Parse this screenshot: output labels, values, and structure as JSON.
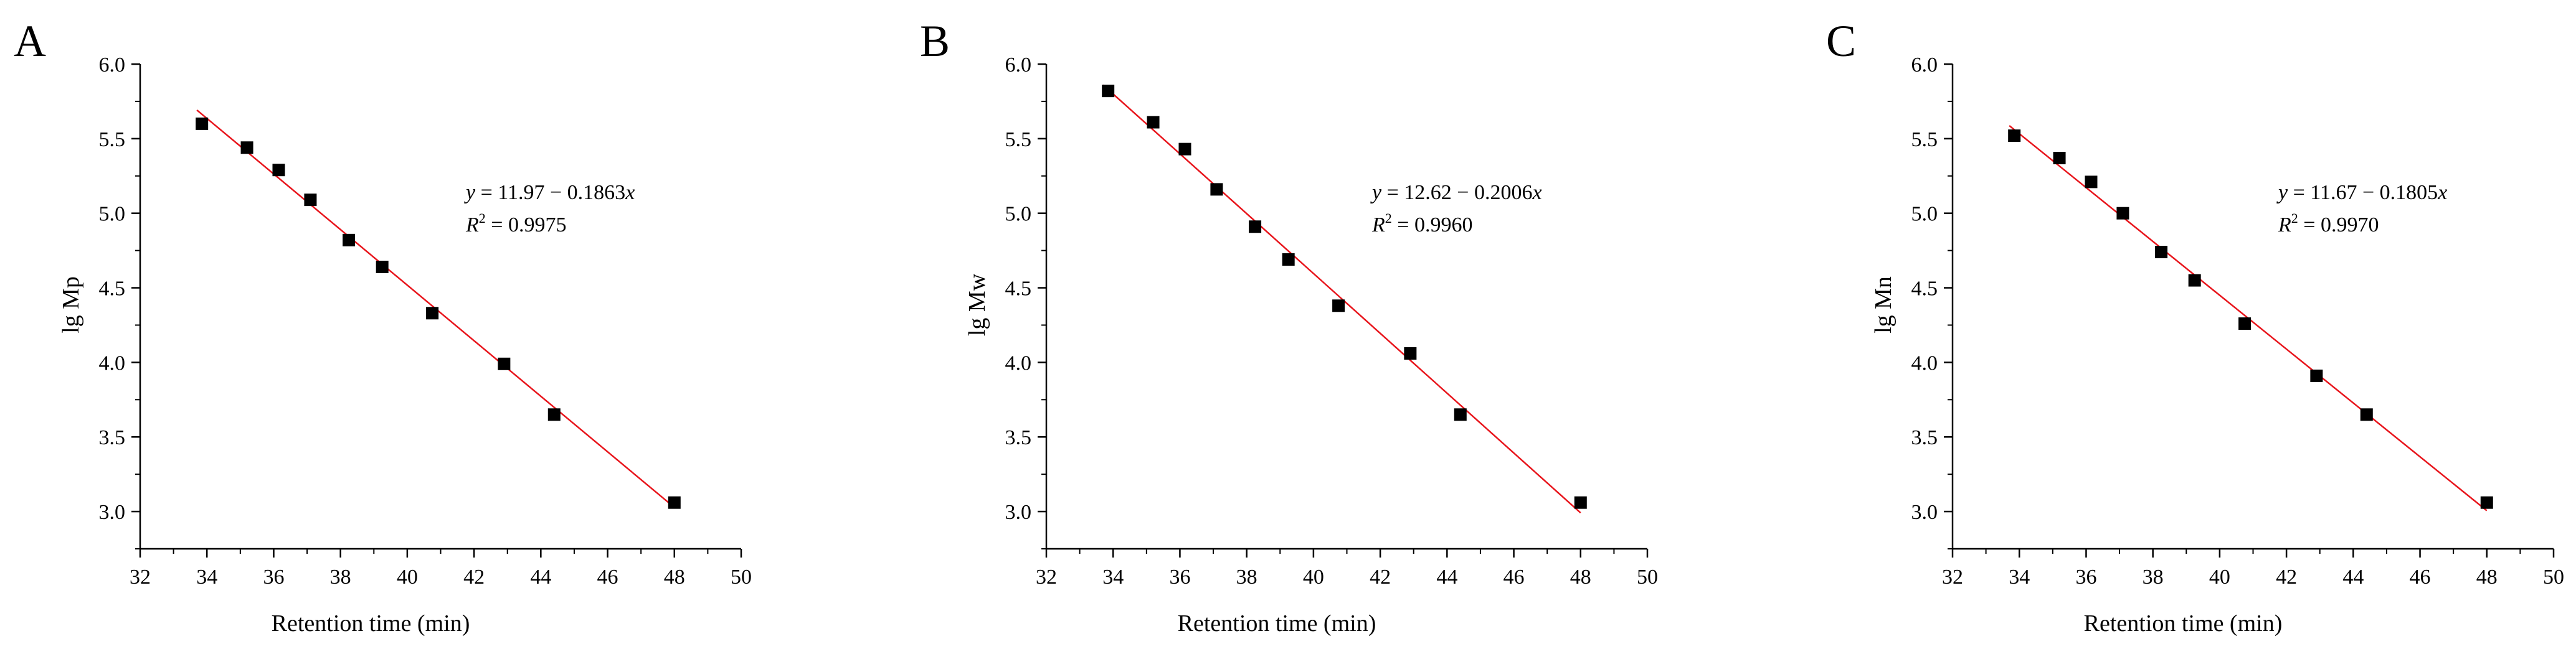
{
  "colors": {
    "points": "#000000",
    "fit_line": "#e8141b",
    "axes": "#000000"
  },
  "chart_data": [
    {
      "type": "scatter",
      "panel": "A",
      "xlabel": "Retention time (min)",
      "ylabel": "lg Mp",
      "xlim": [
        32,
        50
      ],
      "ylim": [
        2.75,
        6.0
      ],
      "xticks": [
        32,
        34,
        36,
        38,
        40,
        42,
        44,
        46,
        48,
        50
      ],
      "xtick_labels": [
        "32",
        "34",
        "36",
        "38",
        "40",
        "42",
        "44",
        "46",
        "48",
        "50"
      ],
      "yticks": [
        3.0,
        3.5,
        4.0,
        4.5,
        5.0,
        5.5,
        6.0
      ],
      "ytick_labels": [
        "3.0",
        "3.5",
        "4.0",
        "4.5",
        "5.0",
        "5.5",
        "6.0"
      ],
      "x": [
        33.85,
        35.2,
        36.15,
        37.1,
        38.25,
        39.25,
        40.75,
        42.9,
        44.4,
        48.0
      ],
      "y": [
        5.6,
        5.44,
        5.29,
        5.09,
        4.82,
        4.64,
        4.33,
        3.99,
        3.65,
        3.06
      ],
      "fit": {
        "intercept": 11.97,
        "slope": -0.1863,
        "x_range": [
          33.7,
          48.0
        ]
      },
      "equation": {
        "y_var": "y",
        "rhs": " = 11.97 − 0.1863",
        "x_var": "x",
        "r_var": "R",
        "r_exp": "2",
        "r_value": " = 0.9975"
      }
    },
    {
      "type": "scatter",
      "panel": "B",
      "xlabel": "Retention time (min)",
      "ylabel": "lg Mw",
      "xlim": [
        32,
        50
      ],
      "ylim": [
        2.75,
        6.0
      ],
      "xticks": [
        32,
        34,
        36,
        38,
        40,
        42,
        44,
        46,
        48,
        50
      ],
      "xtick_labels": [
        "32",
        "34",
        "36",
        "38",
        "40",
        "42",
        "44",
        "46",
        "48",
        "50"
      ],
      "yticks": [
        3.0,
        3.5,
        4.0,
        4.5,
        5.0,
        5.5,
        6.0
      ],
      "ytick_labels": [
        "3.0",
        "3.5",
        "4.0",
        "4.5",
        "5.0",
        "5.5",
        "6.0"
      ],
      "x": [
        33.85,
        35.2,
        36.15,
        37.1,
        38.25,
        39.25,
        40.75,
        42.9,
        44.4,
        48.0
      ],
      "y": [
        5.82,
        5.61,
        5.43,
        5.16,
        4.91,
        4.69,
        4.38,
        4.06,
        3.65,
        3.06
      ],
      "fit": {
        "intercept": 12.62,
        "slope": -0.2006,
        "x_range": [
          33.7,
          48.0
        ]
      },
      "equation": {
        "y_var": "y",
        "rhs": " = 12.62 − 0.2006",
        "x_var": "x",
        "r_var": "R",
        "r_exp": "2",
        "r_value": " = 0.9960"
      }
    },
    {
      "type": "scatter",
      "panel": "C",
      "xlabel": "Retention time (min)",
      "ylabel": "lg Mn",
      "xlim": [
        32,
        50
      ],
      "ylim": [
        2.75,
        6.0
      ],
      "xticks": [
        32,
        34,
        36,
        38,
        40,
        42,
        44,
        46,
        48,
        50
      ],
      "xtick_labels": [
        "32",
        "34",
        "36",
        "38",
        "40",
        "42",
        "44",
        "46",
        "48",
        "50"
      ],
      "yticks": [
        3.0,
        3.5,
        4.0,
        4.5,
        5.0,
        5.5,
        6.0
      ],
      "ytick_labels": [
        "3.0",
        "3.5",
        "4.0",
        "4.5",
        "5.0",
        "5.5",
        "6.0"
      ],
      "x": [
        33.85,
        35.2,
        36.15,
        37.1,
        38.25,
        39.25,
        40.75,
        42.9,
        44.4,
        48.0
      ],
      "y": [
        5.52,
        5.37,
        5.21,
        5.0,
        4.74,
        4.55,
        4.26,
        3.91,
        3.65,
        3.06
      ],
      "fit": {
        "intercept": 11.67,
        "slope": -0.1805,
        "x_range": [
          33.7,
          48.0
        ]
      },
      "equation": {
        "y_var": "y",
        "rhs": " = 11.67 − 0.1805",
        "x_var": "x",
        "r_var": "R",
        "r_exp": "2",
        "r_value": " = 0.9970"
      }
    }
  ]
}
